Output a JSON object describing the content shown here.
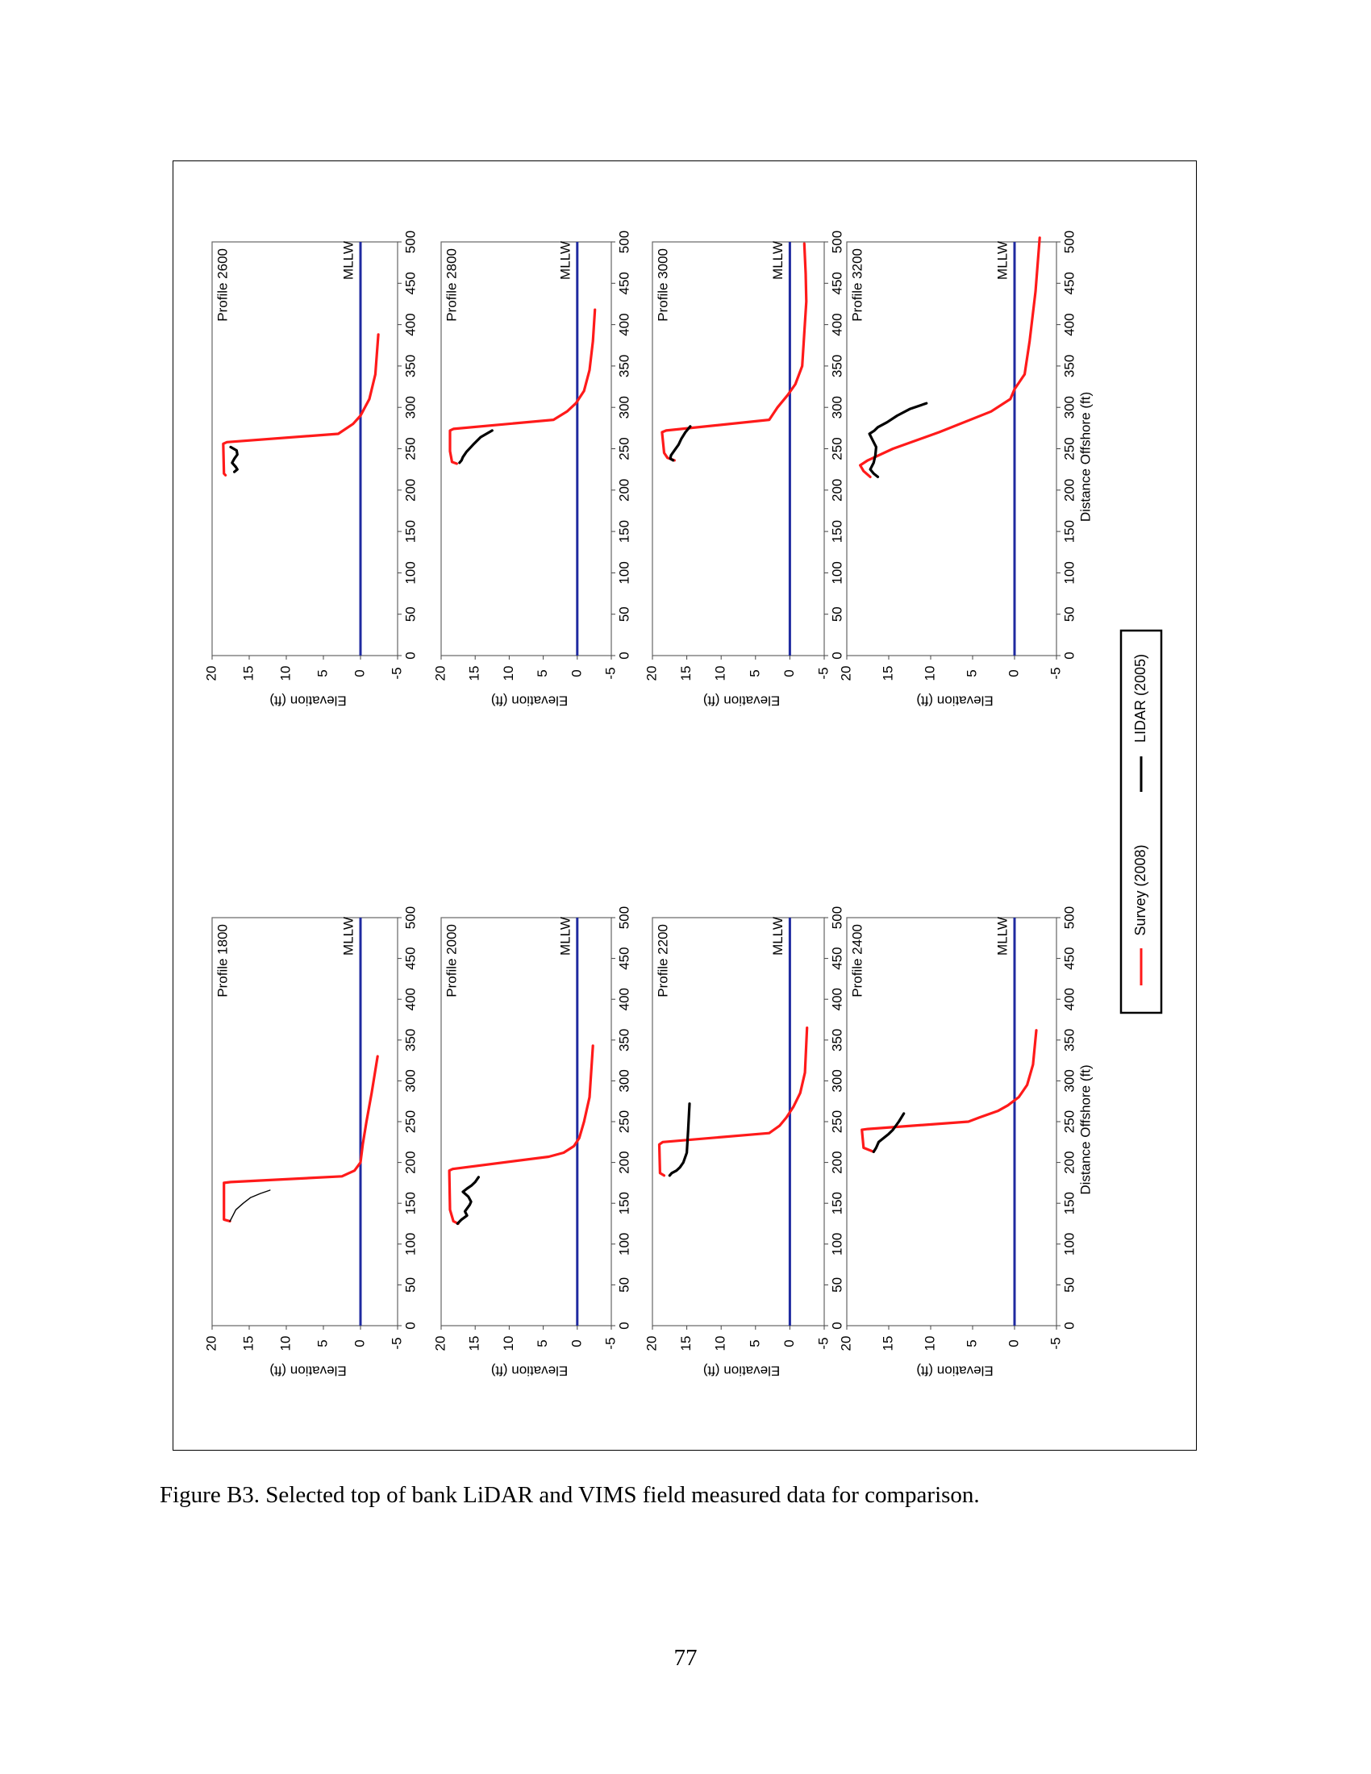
{
  "caption": "Figure B3.  Selected top of bank LiDAR and VIMS field measured data for comparison.",
  "page_number": "77",
  "legend": {
    "survey_label": "Survey (2008)",
    "lidar_label": "LIDAR (2005)"
  },
  "colors": {
    "survey": "#ff1a1a",
    "lidar": "#000000",
    "mllw": "#1f2aa0"
  },
  "chart_data": [
    {
      "type": "line",
      "title": "Profile 1800",
      "xlabel": "",
      "ylabel": "Elevation (ft)",
      "mllw_label": "MLLW",
      "xlim": [
        0,
        500
      ],
      "ylim": [
        -5,
        20
      ],
      "x_ticks": [
        0,
        50,
        100,
        150,
        200,
        250,
        300,
        350,
        400,
        450,
        500
      ],
      "y_ticks": [
        -5,
        0,
        5,
        10,
        15,
        20
      ],
      "grid": false,
      "series": [
        {
          "name": "Survey (2008)",
          "points": [
            [
              128,
              17.6
            ],
            [
              130,
              18.4
            ],
            [
              175,
              18.4
            ],
            [
              176,
              17.5
            ],
            [
              183,
              2.5
            ],
            [
              190,
              0.8
            ],
            [
              200,
              0
            ],
            [
              222,
              -0.3
            ],
            [
              250,
              -0.8
            ],
            [
              285,
              -1.5
            ],
            [
              330,
              -2.3
            ]
          ]
        },
        {
          "name": "LIDAR (2005)",
          "points": [
            [
              128,
              17.6
            ],
            [
              135,
              17.2
            ],
            [
              142,
              16.8
            ],
            [
              150,
              15.8
            ],
            [
              157,
              14.8
            ],
            [
              162,
              13.5
            ],
            [
              166,
              12.2
            ]
          ]
        }
      ]
    },
    {
      "type": "line",
      "title": "Profile 2000",
      "xlabel": "",
      "ylabel": "Elevation (ft)",
      "mllw_label": "MLLW",
      "xlim": [
        0,
        500
      ],
      "ylim": [
        -5,
        20
      ],
      "x_ticks": [
        0,
        50,
        100,
        150,
        200,
        250,
        300,
        350,
        400,
        450,
        500
      ],
      "y_ticks": [
        -5,
        0,
        5,
        10,
        15,
        20
      ],
      "grid": false,
      "series": [
        {
          "name": "Survey (2008)",
          "points": [
            [
              125,
              17.5
            ],
            [
              128,
              18.2
            ],
            [
              142,
              18.7
            ],
            [
              190,
              18.8
            ],
            [
              192,
              18.3
            ],
            [
              207,
              4.2
            ],
            [
              212,
              2
            ],
            [
              220,
              0.5
            ],
            [
              230,
              -0.3
            ],
            [
              250,
              -1
            ],
            [
              280,
              -1.8
            ],
            [
              343,
              -2.3
            ]
          ]
        },
        {
          "name": "LIDAR (2005)",
          "points": [
            [
              125,
              17.6
            ],
            [
              130,
              17
            ],
            [
              135,
              16.2
            ],
            [
              140,
              16.5
            ],
            [
              148,
              15.8
            ],
            [
              152,
              15.6
            ],
            [
              158,
              16
            ],
            [
              164,
              16.8
            ],
            [
              168,
              16.2
            ],
            [
              172,
              15.5
            ],
            [
              176,
              15
            ],
            [
              182,
              14.5
            ]
          ]
        }
      ]
    },
    {
      "type": "line",
      "title": "Profile 2200",
      "xlabel": "",
      "ylabel": "Elevation (ft)",
      "mllw_label": "MLLW",
      "xlim": [
        0,
        500
      ],
      "ylim": [
        -5,
        20
      ],
      "x_ticks": [
        0,
        50,
        100,
        150,
        200,
        250,
        300,
        350,
        400,
        450,
        500
      ],
      "y_ticks": [
        -5,
        0,
        5,
        10,
        15,
        20
      ],
      "grid": false,
      "series": [
        {
          "name": "Survey (2008)",
          "points": [
            [
              184,
              18.3
            ],
            [
              187,
              18.9
            ],
            [
              222,
              19
            ],
            [
              225,
              18.5
            ],
            [
              236,
              3
            ],
            [
              245,
              1.5
            ],
            [
              255,
              0.5
            ],
            [
              268,
              -0.5
            ],
            [
              285,
              -1.5
            ],
            [
              310,
              -2.2
            ],
            [
              365,
              -2.5
            ]
          ]
        },
        {
          "name": "LIDAR (2005)",
          "points": [
            [
              184,
              17.5
            ],
            [
              187,
              17.2
            ],
            [
              190,
              16.5
            ],
            [
              194,
              16
            ],
            [
              200,
              15.5
            ],
            [
              212,
              15
            ],
            [
              240,
              14.8
            ],
            [
              272,
              14.6
            ]
          ]
        }
      ]
    },
    {
      "type": "line",
      "title": "Profile 2400",
      "xlabel": "Distance Offshore (ft)",
      "ylabel": "Elevation (ft)",
      "mllw_label": "MLLW",
      "xlim": [
        0,
        500
      ],
      "ylim": [
        -5,
        20
      ],
      "x_ticks": [
        0,
        50,
        100,
        150,
        200,
        250,
        300,
        350,
        400,
        450,
        500
      ],
      "y_ticks": [
        -5,
        0,
        5,
        10,
        15,
        20
      ],
      "grid": false,
      "series": [
        {
          "name": "Survey (2008)",
          "points": [
            [
              213,
              16.8
            ],
            [
              218,
              18
            ],
            [
              240,
              18.2
            ],
            [
              241,
              17.5
            ],
            [
              250,
              5.5
            ],
            [
              255,
              4.2
            ],
            [
              263,
              2
            ],
            [
              270,
              0.8
            ],
            [
              280,
              -0.5
            ],
            [
              295,
              -1.5
            ],
            [
              320,
              -2.2
            ],
            [
              362,
              -2.6
            ]
          ]
        },
        {
          "name": "LIDAR (2005)",
          "points": [
            [
              213,
              16.8
            ],
            [
              218,
              16.5
            ],
            [
              225,
              16.2
            ],
            [
              235,
              15
            ],
            [
              240,
              14.5
            ],
            [
              250,
              13.8
            ],
            [
              260,
              13.2
            ]
          ]
        }
      ]
    },
    {
      "type": "line",
      "title": "Profile 2600",
      "xlabel": "",
      "ylabel": "Elevation (ft)",
      "mllw_label": "MLLW",
      "xlim": [
        0,
        500
      ],
      "ylim": [
        -5,
        20
      ],
      "x_ticks": [
        0,
        50,
        100,
        150,
        200,
        250,
        300,
        350,
        400,
        450,
        500
      ],
      "y_ticks": [
        -5,
        0,
        5,
        10,
        15,
        20
      ],
      "grid": false,
      "series": [
        {
          "name": "Survey (2008)",
          "points": [
            [
              218,
              18.2
            ],
            [
              220,
              18.4
            ],
            [
              256,
              18.5
            ],
            [
              258,
              18
            ],
            [
              268,
              3
            ],
            [
              280,
              1
            ],
            [
              290,
              0
            ],
            [
              310,
              -1.2
            ],
            [
              340,
              -2
            ],
            [
              388,
              -2.4
            ]
          ]
        },
        {
          "name": "LIDAR (2005)",
          "points": [
            [
              222,
              17
            ],
            [
              225,
              16.6
            ],
            [
              228,
              16.8
            ],
            [
              233,
              17.3
            ],
            [
              238,
              17
            ],
            [
              243,
              16.6
            ],
            [
              248,
              16.7
            ],
            [
              252,
              17.5
            ]
          ]
        }
      ]
    },
    {
      "type": "line",
      "title": "Profile 2800",
      "xlabel": "",
      "ylabel": "Elevation (ft)",
      "mllw_label": "MLLW",
      "xlim": [
        0,
        500
      ],
      "ylim": [
        -5,
        20
      ],
      "x_ticks": [
        0,
        50,
        100,
        150,
        200,
        250,
        300,
        350,
        400,
        450,
        500
      ],
      "y_ticks": [
        -5,
        0,
        5,
        10,
        15,
        20
      ],
      "grid": false,
      "series": [
        {
          "name": "Survey (2008)",
          "points": [
            [
              232,
              17.7
            ],
            [
              234,
              18.4
            ],
            [
              247,
              18.7
            ],
            [
              272,
              18.7
            ],
            [
              274,
              18.2
            ],
            [
              285,
              3.5
            ],
            [
              295,
              1.5
            ],
            [
              305,
              0.2
            ],
            [
              320,
              -1
            ],
            [
              345,
              -1.8
            ],
            [
              380,
              -2.3
            ],
            [
              418,
              -2.6
            ]
          ]
        },
        {
          "name": "LIDAR (2005)",
          "points": [
            [
              233,
              17.3
            ],
            [
              236,
              17
            ],
            [
              240,
              16.8
            ],
            [
              246,
              16.3
            ],
            [
              255,
              15.3
            ],
            [
              264,
              14.2
            ],
            [
              272,
              12.5
            ]
          ]
        }
      ]
    },
    {
      "type": "line",
      "title": "Profile 3000",
      "xlabel": "",
      "ylabel": "Elevation (ft)",
      "mllw_label": "MLLW",
      "xlim": [
        0,
        500
      ],
      "ylim": [
        -5,
        20
      ],
      "x_ticks": [
        0,
        50,
        100,
        150,
        200,
        250,
        300,
        350,
        400,
        450,
        500
      ],
      "y_ticks": [
        -5,
        0,
        5,
        10,
        15,
        20
      ],
      "grid": false,
      "series": [
        {
          "name": "Survey (2008)",
          "points": [
            [
              236,
              16.8
            ],
            [
              239,
              17.8
            ],
            [
              245,
              18.3
            ],
            [
              270,
              18.6
            ],
            [
              272,
              18
            ],
            [
              285,
              3
            ],
            [
              300,
              1.8
            ],
            [
              315,
              0.3
            ],
            [
              328,
              -0.8
            ],
            [
              350,
              -1.8
            ],
            [
              390,
              -2.1
            ],
            [
              428,
              -2.4
            ],
            [
              462,
              -2.3
            ],
            [
              498,
              -2.1
            ]
          ]
        },
        {
          "name": "LIDAR (2005)",
          "points": [
            [
              236,
              17
            ],
            [
              238,
              17.4
            ],
            [
              242,
              17.3
            ],
            [
              248,
              16.8
            ],
            [
              255,
              16.2
            ],
            [
              262,
              15.8
            ],
            [
              270,
              15.2
            ],
            [
              277,
              14.5
            ]
          ]
        }
      ]
    },
    {
      "type": "line",
      "title": "Profile 3200",
      "xlabel": "Distance Offshore (ft)",
      "ylabel": "Elevation (ft)",
      "mllw_label": "MLLW",
      "xlim": [
        0,
        500
      ],
      "ylim": [
        -5,
        20
      ],
      "x_ticks": [
        0,
        50,
        100,
        150,
        200,
        250,
        300,
        350,
        400,
        450,
        500
      ],
      "y_ticks": [
        -5,
        0,
        5,
        10,
        15,
        20
      ],
      "grid": false,
      "series": [
        {
          "name": "Survey (2008)",
          "points": [
            [
              216,
              17.2
            ],
            [
              223,
              18
            ],
            [
              230,
              18.4
            ],
            [
              236,
              17.5
            ],
            [
              250,
              14.5
            ],
            [
              270,
              9
            ],
            [
              295,
              2.8
            ],
            [
              310,
              0.5
            ],
            [
              322,
              0
            ],
            [
              340,
              -1.2
            ],
            [
              380,
              -1.8
            ],
            [
              440,
              -2.5
            ],
            [
              505,
              -3
            ]
          ]
        },
        {
          "name": "LIDAR (2005)",
          "points": [
            [
              216,
              16.3
            ],
            [
              220,
              16.8
            ],
            [
              225,
              17.2
            ],
            [
              233,
              16.8
            ],
            [
              242,
              16.6
            ],
            [
              252,
              16.5
            ],
            [
              262,
              17
            ],
            [
              268,
              17.3
            ],
            [
              272,
              16.7
            ],
            [
              276,
              16.3
            ],
            [
              282,
              15.2
            ],
            [
              290,
              14
            ],
            [
              298,
              12.5
            ],
            [
              305,
              10.5
            ]
          ]
        }
      ]
    }
  ]
}
